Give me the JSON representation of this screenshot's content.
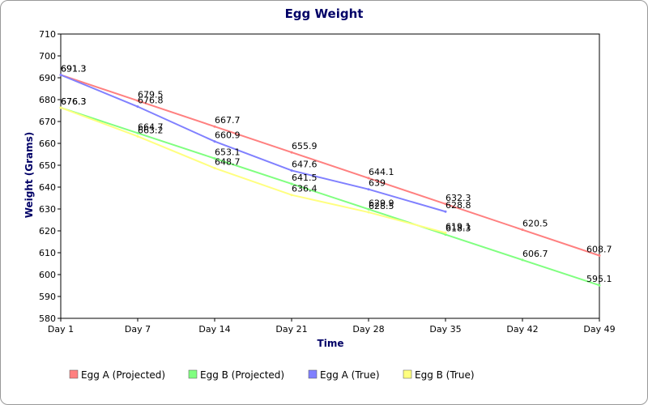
{
  "chart_data": {
    "type": "line",
    "title": "Egg Weight",
    "xlabel": "Time",
    "ylabel": "Weight (Grams)",
    "categories": [
      "Day 1",
      "Day 7",
      "Day 14",
      "Day 21",
      "Day 28",
      "Day 35",
      "Day 42",
      "Day 49"
    ],
    "ylim": [
      580,
      710
    ],
    "yticks": [
      580,
      590,
      600,
      610,
      620,
      630,
      640,
      650,
      660,
      670,
      680,
      690,
      700,
      710
    ],
    "grid": false,
    "legend_position": "bottom",
    "series": [
      {
        "name": "Egg A (Projected)",
        "color": "#ff8080",
        "values": [
          691.3,
          679.5,
          667.7,
          655.9,
          644.1,
          632.3,
          620.5,
          608.7
        ]
      },
      {
        "name": "Egg B (Projected)",
        "color": "#80ff80",
        "values": [
          676.3,
          664.7,
          653.1,
          641.5,
          629.9,
          618.3,
          606.7,
          595.1
        ]
      },
      {
        "name": "Egg A (True)",
        "color": "#8080ff",
        "values": [
          691.3,
          676.8,
          660.9,
          647.6,
          639,
          628.8,
          null,
          null
        ]
      },
      {
        "name": "Egg B (True)",
        "color": "#ffff80",
        "values": [
          676.3,
          663.2,
          648.7,
          636.4,
          628.5,
          619.1,
          null,
          null
        ]
      }
    ]
  }
}
